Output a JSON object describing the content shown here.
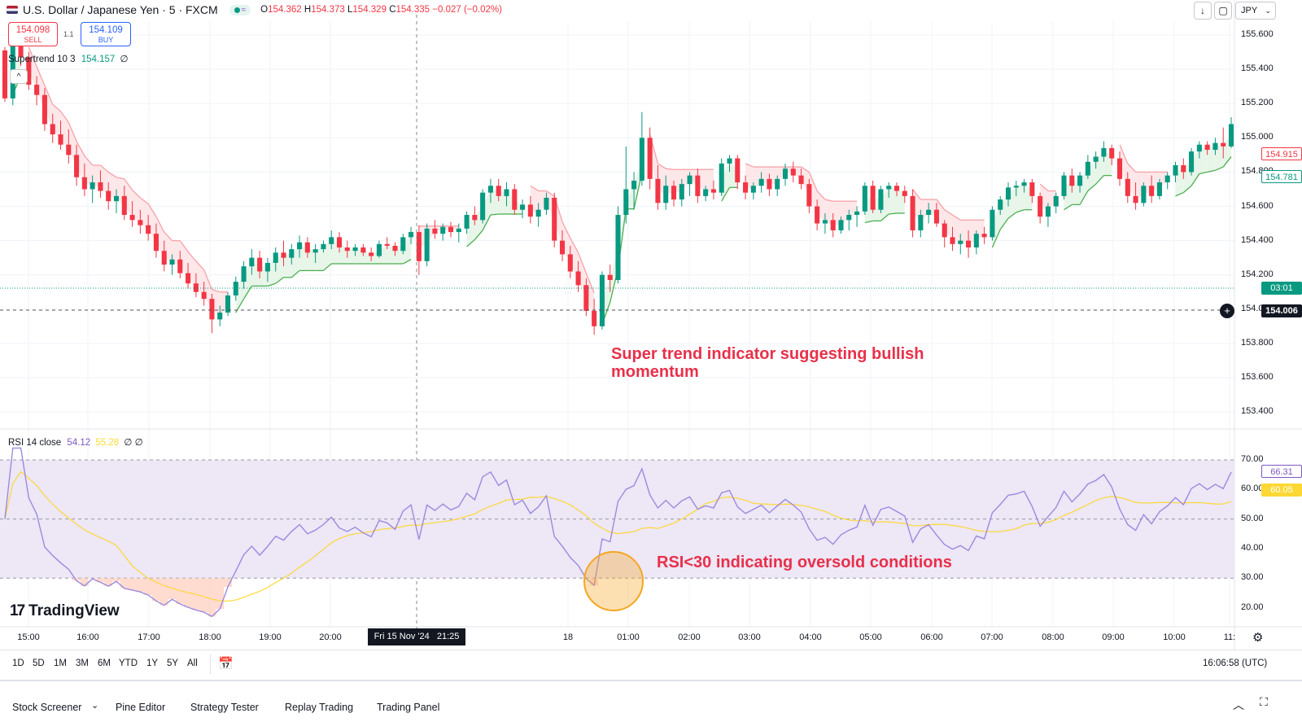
{
  "header": {
    "symbol_title": "U.S. Dollar / Japanese Yen · 5 · FXCM",
    "open_label": "O",
    "open": "154.362",
    "high_label": "H",
    "high": "154.373",
    "low_label": "L",
    "low": "154.329",
    "close_label": "C",
    "close": "154.335",
    "change": "−0.027 (−0.02%)"
  },
  "trade": {
    "sell_price": "154.098",
    "sell_label": "SELL",
    "spread": "1.1",
    "buy_price": "154.109",
    "buy_label": "BUY"
  },
  "top_right": {
    "currency": "JPY"
  },
  "supertrend_legend": {
    "name": "Supertrend",
    "params": "10 3",
    "value": "154.157",
    "symbol": "∅"
  },
  "rsi_legend": {
    "name": "RSI",
    "params": "14 close",
    "value": "54.12",
    "ma_value": "55.28",
    "symbols": "∅ ∅"
  },
  "price_axis": {
    "ticks": [
      "155.600",
      "155.400",
      "155.200",
      "155.000",
      "154.800",
      "154.600",
      "154.400",
      "154.200",
      "154.000",
      "153.800",
      "153.600",
      "153.400"
    ],
    "label_red": "154.915",
    "label_green": "154.781",
    "countdown": "03:01",
    "crosshair": "154.006"
  },
  "rsi_axis": {
    "ticks": [
      "70.00",
      "60.00",
      "50.00",
      "40.00",
      "30.00",
      "20.00"
    ],
    "label_rsi": "66.31",
    "label_ma": "60.05"
  },
  "time_axis": {
    "labels": [
      "15:00",
      "16:00",
      "17:00",
      "18:00",
      "19:00",
      "20:00",
      "18",
      "01:00",
      "02:00",
      "03:00",
      "04:00",
      "05:00",
      "06:00",
      "07:00",
      "08:00",
      "09:00",
      "10:00",
      "11:"
    ],
    "crosshair": "Fri 15 Nov '24   21:25"
  },
  "annotations": {
    "supertrend": "Super trend indicator suggesting bullish momentum",
    "rsi": "RSI<30 indicating oversold conditions"
  },
  "watermark": "TradingView",
  "ranges": [
    "1D",
    "5D",
    "1M",
    "3M",
    "6M",
    "YTD",
    "1Y",
    "5Y",
    "All"
  ],
  "clock": "16:06:58 (UTC)",
  "bottom_tabs": [
    "Stock Screener",
    "Pine Editor",
    "Strategy Tester",
    "Replay Trading",
    "Trading Panel"
  ],
  "colors": {
    "up": "#089981",
    "down": "#f23645",
    "rsi_line": "#7e57c2",
    "rsi_ma": "#fdd835",
    "rsi_band": "#ede7f6",
    "st_up_fill": "#e8f5e9",
    "st_down_fill": "#fde7e9",
    "annotation": "#e8304a",
    "highlight_circle": "#f5a623"
  },
  "chart_data": {
    "type": "candlestick",
    "price_range": [
      153.3,
      155.7
    ],
    "candles": [
      [
        155.51,
        155.53,
        155.21,
        155.23
      ],
      [
        155.23,
        155.6,
        155.19,
        155.55
      ],
      [
        155.55,
        155.58,
        155.42,
        155.47
      ],
      [
        155.47,
        155.5,
        155.28,
        155.31
      ],
      [
        155.31,
        155.36,
        155.19,
        155.25
      ],
      [
        155.25,
        155.29,
        155.04,
        155.08
      ],
      [
        155.08,
        155.14,
        154.97,
        155.02
      ],
      [
        155.02,
        155.1,
        154.93,
        154.96
      ],
      [
        154.96,
        155.05,
        154.85,
        154.9
      ],
      [
        154.9,
        154.96,
        154.72,
        154.77
      ],
      [
        154.77,
        154.85,
        154.66,
        154.7
      ],
      [
        154.7,
        154.78,
        154.62,
        154.74
      ],
      [
        154.74,
        154.81,
        154.65,
        154.69
      ],
      [
        154.69,
        154.74,
        154.58,
        154.63
      ],
      [
        154.63,
        154.7,
        154.56,
        154.66
      ],
      [
        154.66,
        154.72,
        154.52,
        154.55
      ],
      [
        154.55,
        154.63,
        154.48,
        154.52
      ],
      [
        154.52,
        154.58,
        154.44,
        154.49
      ],
      [
        154.49,
        154.55,
        154.4,
        154.44
      ],
      [
        154.44,
        154.5,
        154.3,
        154.34
      ],
      [
        154.34,
        154.4,
        154.22,
        154.26
      ],
      [
        154.26,
        154.32,
        154.2,
        154.29
      ],
      [
        154.29,
        154.34,
        154.18,
        154.21
      ],
      [
        154.21,
        154.27,
        154.12,
        154.15
      ],
      [
        154.15,
        154.21,
        154.07,
        154.1
      ],
      [
        154.1,
        154.16,
        154.02,
        154.06
      ],
      [
        154.06,
        154.09,
        153.86,
        153.94
      ],
      [
        153.94,
        154.02,
        153.9,
        153.98
      ],
      [
        153.98,
        154.1,
        153.96,
        154.08
      ],
      [
        154.08,
        154.19,
        154.05,
        154.16
      ],
      [
        154.16,
        154.28,
        154.12,
        154.25
      ],
      [
        154.25,
        154.35,
        154.2,
        154.3
      ],
      [
        154.3,
        154.34,
        154.18,
        154.22
      ],
      [
        154.22,
        154.3,
        154.16,
        154.27
      ],
      [
        154.27,
        154.36,
        154.22,
        154.33
      ],
      [
        154.33,
        154.4,
        154.25,
        154.3
      ],
      [
        154.3,
        154.38,
        154.26,
        154.35
      ],
      [
        154.35,
        154.43,
        154.3,
        154.39
      ],
      [
        154.39,
        154.42,
        154.3,
        154.33
      ],
      [
        154.33,
        154.38,
        154.27,
        154.35
      ],
      [
        154.35,
        154.4,
        154.33,
        154.38
      ],
      [
        154.38,
        154.46,
        154.35,
        154.42
      ],
      [
        154.42,
        154.45,
        154.33,
        154.36
      ],
      [
        154.36,
        154.4,
        154.3,
        154.34
      ],
      [
        154.34,
        154.38,
        154.31,
        154.36
      ],
      [
        154.36,
        154.38,
        154.31,
        154.33
      ],
      [
        154.33,
        154.36,
        154.28,
        154.31
      ],
      [
        154.31,
        154.4,
        154.3,
        154.38
      ],
      [
        154.38,
        154.42,
        154.35,
        154.37
      ],
      [
        154.37,
        154.39,
        154.31,
        154.34
      ],
      [
        154.34,
        154.44,
        154.32,
        154.42
      ],
      [
        154.42,
        154.48,
        154.38,
        154.45
      ],
      [
        154.45,
        154.49,
        154.2,
        154.28
      ],
      [
        154.28,
        154.5,
        154.25,
        154.47
      ],
      [
        154.47,
        154.52,
        154.41,
        154.44
      ],
      [
        154.44,
        154.5,
        154.4,
        154.48
      ],
      [
        154.48,
        154.51,
        154.42,
        154.45
      ],
      [
        154.45,
        154.5,
        154.39,
        154.47
      ],
      [
        154.47,
        154.57,
        154.44,
        154.55
      ],
      [
        154.55,
        154.6,
        154.49,
        154.52
      ],
      [
        154.52,
        154.7,
        154.5,
        154.68
      ],
      [
        154.68,
        154.76,
        154.62,
        154.72
      ],
      [
        154.72,
        154.76,
        154.63,
        154.66
      ],
      [
        154.66,
        154.74,
        154.6,
        154.7
      ],
      [
        154.7,
        154.73,
        154.55,
        154.58
      ],
      [
        154.58,
        154.64,
        154.53,
        154.61
      ],
      [
        154.61,
        154.66,
        154.5,
        154.54
      ],
      [
        154.54,
        154.62,
        154.48,
        154.58
      ],
      [
        154.58,
        154.68,
        154.55,
        154.65
      ],
      [
        154.65,
        154.68,
        154.36,
        154.4
      ],
      [
        154.4,
        154.46,
        154.28,
        154.32
      ],
      [
        154.32,
        154.37,
        154.18,
        154.22
      ],
      [
        154.22,
        154.28,
        154.1,
        154.14
      ],
      [
        154.14,
        154.18,
        153.96,
        153.99
      ],
      [
        153.99,
        154.06,
        153.85,
        153.9
      ],
      [
        153.9,
        154.22,
        153.88,
        154.2
      ],
      [
        154.2,
        154.26,
        154.1,
        154.17
      ],
      [
        154.17,
        154.6,
        154.15,
        154.55
      ],
      [
        154.55,
        154.95,
        154.5,
        154.7
      ],
      [
        154.7,
        154.8,
        154.58,
        154.75
      ],
      [
        154.75,
        155.15,
        154.72,
        155.0
      ],
      [
        155.0,
        155.06,
        154.7,
        154.76
      ],
      [
        154.76,
        154.84,
        154.58,
        154.62
      ],
      [
        154.62,
        154.78,
        154.58,
        154.72
      ],
      [
        154.72,
        154.75,
        154.6,
        154.64
      ],
      [
        154.64,
        154.76,
        154.6,
        154.73
      ],
      [
        154.73,
        154.8,
        154.66,
        154.78
      ],
      [
        154.78,
        154.82,
        154.62,
        154.66
      ],
      [
        154.66,
        154.72,
        154.63,
        154.7
      ],
      [
        154.7,
        154.75,
        154.64,
        154.68
      ],
      [
        154.68,
        154.88,
        154.66,
        154.85
      ],
      [
        154.85,
        154.9,
        154.8,
        154.88
      ],
      [
        154.88,
        154.9,
        154.7,
        154.74
      ],
      [
        154.74,
        154.78,
        154.64,
        154.68
      ],
      [
        154.68,
        154.74,
        154.64,
        154.72
      ],
      [
        154.72,
        154.8,
        154.68,
        154.76
      ],
      [
        154.76,
        154.79,
        154.66,
        154.7
      ],
      [
        154.7,
        154.78,
        154.66,
        154.76
      ],
      [
        154.76,
        154.85,
        154.72,
        154.82
      ],
      [
        154.82,
        154.86,
        154.74,
        154.78
      ],
      [
        154.78,
        154.82,
        154.7,
        154.73
      ],
      [
        154.73,
        154.76,
        154.56,
        154.6
      ],
      [
        154.6,
        154.64,
        154.46,
        154.5
      ],
      [
        154.5,
        154.56,
        154.44,
        154.52
      ],
      [
        154.52,
        154.56,
        154.42,
        154.46
      ],
      [
        154.46,
        154.54,
        154.44,
        154.52
      ],
      [
        154.52,
        154.58,
        154.46,
        154.55
      ],
      [
        154.55,
        154.6,
        154.48,
        154.57
      ],
      [
        154.57,
        154.74,
        154.55,
        154.72
      ],
      [
        154.72,
        154.75,
        154.56,
        154.58
      ],
      [
        154.58,
        154.72,
        154.56,
        154.7
      ],
      [
        154.7,
        154.74,
        154.65,
        154.72
      ],
      [
        154.72,
        154.74,
        154.66,
        154.69
      ],
      [
        154.69,
        154.72,
        154.62,
        154.66
      ],
      [
        154.66,
        154.7,
        154.42,
        154.46
      ],
      [
        154.46,
        154.58,
        154.42,
        154.55
      ],
      [
        154.55,
        154.62,
        154.5,
        154.58
      ],
      [
        154.58,
        154.62,
        154.48,
        154.5
      ],
      [
        154.5,
        154.52,
        154.36,
        154.42
      ],
      [
        154.42,
        154.48,
        154.34,
        154.38
      ],
      [
        154.38,
        154.44,
        154.32,
        154.4
      ],
      [
        154.4,
        154.46,
        154.3,
        154.36
      ],
      [
        154.36,
        154.46,
        154.32,
        154.44
      ],
      [
        154.44,
        154.48,
        154.38,
        154.42
      ],
      [
        154.42,
        154.6,
        154.4,
        154.58
      ],
      [
        154.58,
        154.66,
        154.55,
        154.64
      ],
      [
        154.64,
        154.74,
        154.6,
        154.71
      ],
      [
        154.71,
        154.75,
        154.66,
        154.72
      ],
      [
        154.72,
        154.76,
        154.68,
        154.74
      ],
      [
        154.74,
        154.76,
        154.62,
        154.66
      ],
      [
        154.66,
        154.68,
        154.5,
        154.54
      ],
      [
        154.54,
        154.62,
        154.48,
        154.6
      ],
      [
        154.6,
        154.68,
        154.56,
        154.66
      ],
      [
        154.66,
        154.8,
        154.64,
        154.78
      ],
      [
        154.78,
        154.82,
        154.68,
        154.72
      ],
      [
        154.72,
        154.8,
        154.68,
        154.78
      ],
      [
        154.78,
        154.9,
        154.76,
        154.86
      ],
      [
        154.86,
        154.92,
        154.82,
        154.89
      ],
      [
        154.89,
        154.98,
        154.86,
        154.94
      ],
      [
        154.94,
        154.96,
        154.84,
        154.88
      ],
      [
        154.88,
        154.92,
        154.72,
        154.76
      ],
      [
        154.76,
        154.8,
        154.62,
        154.66
      ],
      [
        154.66,
        154.74,
        154.58,
        154.62
      ],
      [
        154.62,
        154.74,
        154.6,
        154.72
      ],
      [
        154.72,
        154.78,
        154.62,
        154.66
      ],
      [
        154.66,
        154.76,
        154.64,
        154.74
      ],
      [
        154.74,
        154.8,
        154.7,
        154.78
      ],
      [
        154.78,
        154.86,
        154.74,
        154.84
      ],
      [
        154.84,
        154.88,
        154.76,
        154.8
      ],
      [
        154.8,
        154.94,
        154.78,
        154.92
      ],
      [
        154.92,
        154.98,
        154.88,
        154.96
      ],
      [
        154.96,
        154.98,
        154.9,
        154.93
      ],
      [
        154.93,
        155.0,
        154.9,
        154.97
      ],
      [
        154.97,
        155.06,
        154.88,
        154.95
      ],
      [
        154.95,
        155.12,
        154.94,
        155.08
      ]
    ],
    "supertrend": {
      "period": 10,
      "multiplier": 3,
      "last": 154.157
    },
    "rsi": {
      "period": 14,
      "source": "close",
      "value": 54.12,
      "ma": 55.28,
      "upper": 70,
      "middle": 50,
      "lower": 30,
      "range": [
        15,
        75
      ]
    }
  }
}
